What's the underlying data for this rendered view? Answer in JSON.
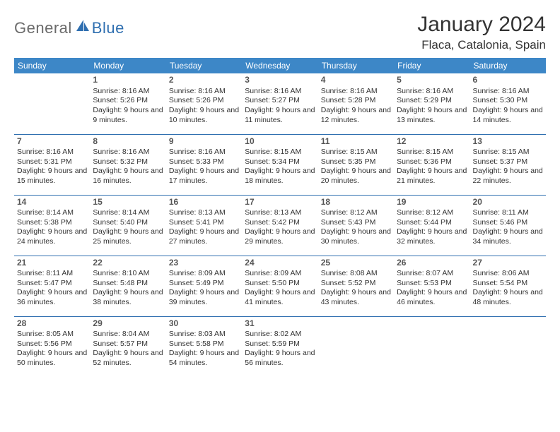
{
  "logo": {
    "text1": "General",
    "text2": "Blue"
  },
  "title": "January 2024",
  "location": "Flaca, Catalonia, Spain",
  "colors": {
    "header_bg": "#3d87c7",
    "header_text": "#ffffff",
    "border": "#2f6fb0",
    "body_text": "#333333",
    "logo_gray": "#6b6b6b",
    "logo_blue": "#2f6fb0",
    "page_bg": "#ffffff"
  },
  "typography": {
    "title_fontsize": 30,
    "location_fontsize": 17,
    "header_fontsize": 12,
    "daynum_fontsize": 12,
    "cell_fontsize": 10.5
  },
  "columns": [
    "Sunday",
    "Monday",
    "Tuesday",
    "Wednesday",
    "Thursday",
    "Friday",
    "Saturday"
  ],
  "weeks": [
    [
      null,
      {
        "n": "1",
        "sr": "8:16 AM",
        "ss": "5:26 PM",
        "dl": "9 hours and 9 minutes."
      },
      {
        "n": "2",
        "sr": "8:16 AM",
        "ss": "5:26 PM",
        "dl": "9 hours and 10 minutes."
      },
      {
        "n": "3",
        "sr": "8:16 AM",
        "ss": "5:27 PM",
        "dl": "9 hours and 11 minutes."
      },
      {
        "n": "4",
        "sr": "8:16 AM",
        "ss": "5:28 PM",
        "dl": "9 hours and 12 minutes."
      },
      {
        "n": "5",
        "sr": "8:16 AM",
        "ss": "5:29 PM",
        "dl": "9 hours and 13 minutes."
      },
      {
        "n": "6",
        "sr": "8:16 AM",
        "ss": "5:30 PM",
        "dl": "9 hours and 14 minutes."
      }
    ],
    [
      {
        "n": "7",
        "sr": "8:16 AM",
        "ss": "5:31 PM",
        "dl": "9 hours and 15 minutes."
      },
      {
        "n": "8",
        "sr": "8:16 AM",
        "ss": "5:32 PM",
        "dl": "9 hours and 16 minutes."
      },
      {
        "n": "9",
        "sr": "8:16 AM",
        "ss": "5:33 PM",
        "dl": "9 hours and 17 minutes."
      },
      {
        "n": "10",
        "sr": "8:15 AM",
        "ss": "5:34 PM",
        "dl": "9 hours and 18 minutes."
      },
      {
        "n": "11",
        "sr": "8:15 AM",
        "ss": "5:35 PM",
        "dl": "9 hours and 20 minutes."
      },
      {
        "n": "12",
        "sr": "8:15 AM",
        "ss": "5:36 PM",
        "dl": "9 hours and 21 minutes."
      },
      {
        "n": "13",
        "sr": "8:15 AM",
        "ss": "5:37 PM",
        "dl": "9 hours and 22 minutes."
      }
    ],
    [
      {
        "n": "14",
        "sr": "8:14 AM",
        "ss": "5:38 PM",
        "dl": "9 hours and 24 minutes."
      },
      {
        "n": "15",
        "sr": "8:14 AM",
        "ss": "5:40 PM",
        "dl": "9 hours and 25 minutes."
      },
      {
        "n": "16",
        "sr": "8:13 AM",
        "ss": "5:41 PM",
        "dl": "9 hours and 27 minutes."
      },
      {
        "n": "17",
        "sr": "8:13 AM",
        "ss": "5:42 PM",
        "dl": "9 hours and 29 minutes."
      },
      {
        "n": "18",
        "sr": "8:12 AM",
        "ss": "5:43 PM",
        "dl": "9 hours and 30 minutes."
      },
      {
        "n": "19",
        "sr": "8:12 AM",
        "ss": "5:44 PM",
        "dl": "9 hours and 32 minutes."
      },
      {
        "n": "20",
        "sr": "8:11 AM",
        "ss": "5:46 PM",
        "dl": "9 hours and 34 minutes."
      }
    ],
    [
      {
        "n": "21",
        "sr": "8:11 AM",
        "ss": "5:47 PM",
        "dl": "9 hours and 36 minutes."
      },
      {
        "n": "22",
        "sr": "8:10 AM",
        "ss": "5:48 PM",
        "dl": "9 hours and 38 minutes."
      },
      {
        "n": "23",
        "sr": "8:09 AM",
        "ss": "5:49 PM",
        "dl": "9 hours and 39 minutes."
      },
      {
        "n": "24",
        "sr": "8:09 AM",
        "ss": "5:50 PM",
        "dl": "9 hours and 41 minutes."
      },
      {
        "n": "25",
        "sr": "8:08 AM",
        "ss": "5:52 PM",
        "dl": "9 hours and 43 minutes."
      },
      {
        "n": "26",
        "sr": "8:07 AM",
        "ss": "5:53 PM",
        "dl": "9 hours and 46 minutes."
      },
      {
        "n": "27",
        "sr": "8:06 AM",
        "ss": "5:54 PM",
        "dl": "9 hours and 48 minutes."
      }
    ],
    [
      {
        "n": "28",
        "sr": "8:05 AM",
        "ss": "5:56 PM",
        "dl": "9 hours and 50 minutes."
      },
      {
        "n": "29",
        "sr": "8:04 AM",
        "ss": "5:57 PM",
        "dl": "9 hours and 52 minutes."
      },
      {
        "n": "30",
        "sr": "8:03 AM",
        "ss": "5:58 PM",
        "dl": "9 hours and 54 minutes."
      },
      {
        "n": "31",
        "sr": "8:02 AM",
        "ss": "5:59 PM",
        "dl": "9 hours and 56 minutes."
      },
      null,
      null,
      null
    ]
  ],
  "labels": {
    "sunrise": "Sunrise: ",
    "sunset": "Sunset: ",
    "daylight": "Daylight: "
  }
}
